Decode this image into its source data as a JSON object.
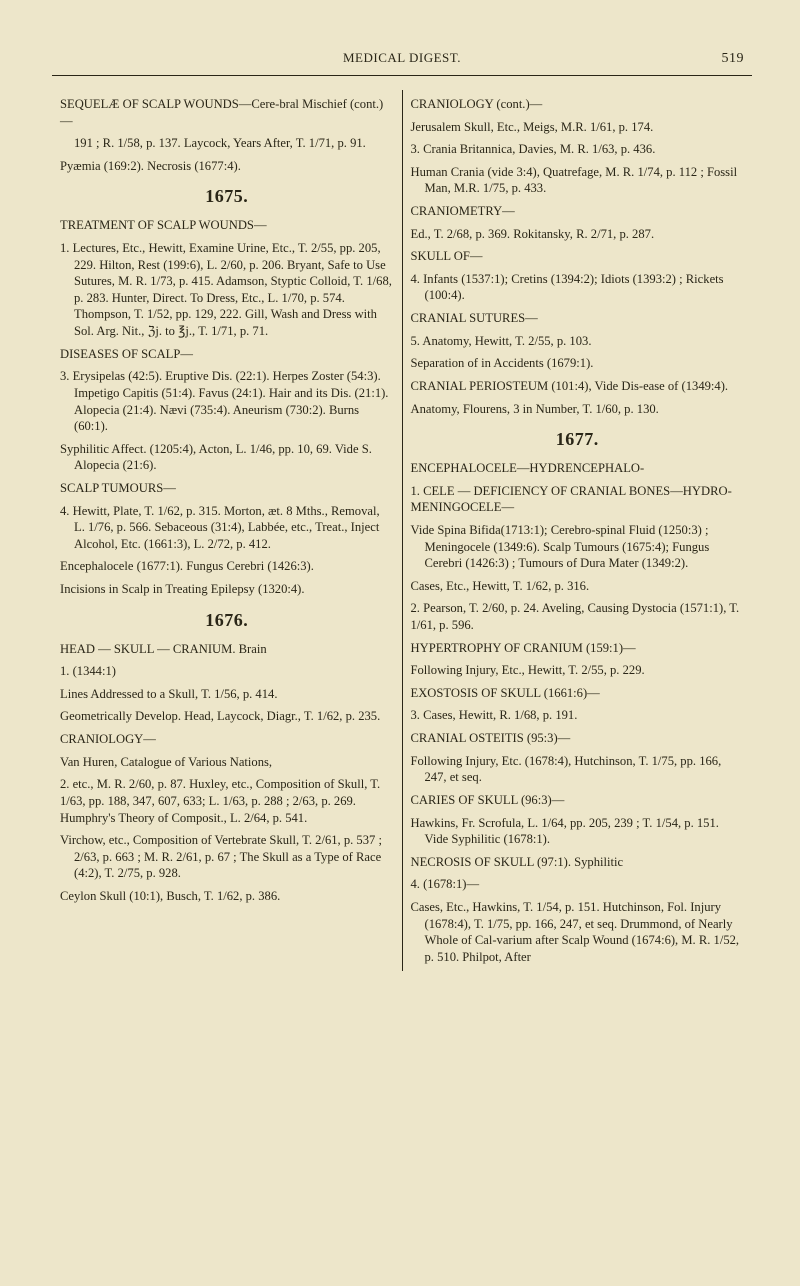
{
  "page": {
    "running_head": "MEDICAL DIGEST.",
    "page_number": "519",
    "background_color": "#ede6ca",
    "text_color": "#2a2617",
    "base_font_size_pt": 9,
    "heading_font_size_pt": 14
  },
  "left": {
    "e1": "SEQUELÆ OF SCALP WOUNDS—Cere-bral Mischief (cont.)—",
    "e1b": "191 ; R. 1/58, p. 137.  Laycock, Years After, T. 1/71, p. 91.",
    "e1c": "Pyæmia (169:2).  Necrosis (1677:4).",
    "year1": "1675.",
    "e2": "TREATMENT OF SCALP WOUNDS—",
    "e3": "1. Lectures, Etc., Hewitt, Examine Urine, Etc., T. 2/55, pp. 205, 229.  Hilton, Rest (199:6), L. 2/60, p. 206.  Bryant, Safe to Use Sutures, M. R. 1/73, p. 415.  Adamson, Styptic Colloid, T. 1/68, p. 283.  Hunter, Direct. To Dress, Etc., L. 1/70, p. 574.  Thompson, T. 1/52, pp. 129, 222.  Gill, Wash and Dress with Sol. Arg. Nit., ℨj. to ℥j., T. 1/71, p. 71.",
    "e4": "DISEASES OF SCALP—",
    "e5": "3. Erysipelas (42:5).  Eruptive Dis. (22:1). Herpes Zoster (54:3).  Impetigo Capitis (51:4).  Favus (24:1).  Hair and its Dis. (21:1).  Alopecia (21:4). Nævi (735:4).  Aneurism (730:2).  Burns (60:1).",
    "e5b": "Syphilitic Affect. (1205:4), Acton, L. 1/46, pp. 10, 69.  Vide S. Alopecia (21:6).",
    "e6": "SCALP TUMOURS—",
    "e7": "4. Hewitt, Plate, T. 1/62, p. 315.  Morton, æt. 8 Mths., Removal, L. 1/76, p. 566. Sebaceous (31:4), Labbée, etc., Treat., Inject Alcohol, Etc. (1661:3), L. 2/72, p. 412.",
    "e7b": "Encephalocele (1677:1). Fungus Cerebri (1426:3).",
    "e7c": "Incisions in Scalp in Treating Epilepsy (1320:4).",
    "year2": "1676.",
    "e8": "HEAD — SKULL — CRANIUM.   Brain",
    "e8b": "1.    (1344:1)",
    "e9": "Lines Addressed to a Skull, T. 1/56, p. 414.",
    "e10": "Geometrically Develop.  Head, Laycock, Diagr., T. 1/62, p. 235.",
    "e11": "CRANIOLOGY—",
    "e12": "Van Huren, Catalogue of Various Nations,",
    "e12b": "2.    etc., M. R. 2/60, p. 87.  Huxley, etc., Composition of Skull, T. 1/63, pp. 188, 347, 607, 633;  L. 1/63, p. 288 ; 2/63, p. 269.  Humphry's Theory of Composit., L. 2/64, p. 541.",
    "e12c": "Virchow, etc., Composition of Vertebrate Skull, T. 2/61, p. 537 ; 2/63, p. 663 ; M. R. 2/61, p. 67 ;  The Skull as a Type of Race (4:2), T. 2/75, p. 928.",
    "e12d": "Ceylon Skull (10:1), Busch, T. 1/62, p. 386."
  },
  "right": {
    "e1": "CRANIOLOGY (cont.)—",
    "e2": "Jerusalem Skull, Etc., Meigs, M.R. 1/61, p. 174.",
    "e3": "3. Crania Britannica, Davies, M. R. 1/63, p. 436.",
    "e4": "Human Crania (vide 3:4), Quatrefage, M. R. 1/74, p. 112 ; Fossil Man, M.R. 1/75, p. 433.",
    "e5": "CRANIOMETRY—",
    "e6": "Ed., T. 2/68, p. 369.  Rokitansky, R. 2/71, p. 287.",
    "e7": "SKULL OF—",
    "e8": "4. Infants (1537:1); Cretins (1394:2); Idiots (1393:2) ; Rickets (100:4).",
    "e9": "CRANIAL SUTURES—",
    "e10": "5. Anatomy, Hewitt, T. 2/55, p. 103.",
    "e10b": "Separation of in Accidents (1679:1).",
    "e11": "CRANIAL PERIOSTEUM (101:4), Vide Dis-ease of (1349:4).",
    "e11b": "Anatomy, Flourens, 3 in Number, T. 1/60, p. 130.",
    "year1": "1677.",
    "e12": "ENCEPHALOCELE—HYDRENCEPHALO-",
    "e12b": "1.  CELE — DEFICIENCY OF CRANIAL BONES—HYDRO-MENINGOCELE—",
    "e13": "Vide Spina Bifida(1713:1); Cerebro-spinal Fluid  (1250:3) ;    Meningocele (1349:6).  Scalp Tumours (1675:4); Fungus Cerebri (1426:3) ; Tumours of Dura Mater (1349:2).",
    "e14": "Cases, Etc., Hewitt, T. 1/62, p. 316.",
    "e14b": "2.    Pearson, T. 2/60, p. 24.  Aveling, Causing Dystocia (1571:1), T. 1/61, p. 596.",
    "e15": "HYPERTROPHY OF CRANIUM (159:1)—",
    "e15b": "Following Injury, Etc., Hewitt, T. 2/55, p. 229.",
    "e16": "EXOSTOSIS OF SKULL (1661:6)—",
    "e16b": "3. Cases, Hewitt, R. 1/68, p. 191.",
    "e17": "CRANIAL OSTEITIS (95:3)—",
    "e17b": "Following Injury, Etc. (1678:4), Hutchinson, T. 1/75, pp. 166, 247, et seq.",
    "e18": "CARIES OF SKULL (96:3)—",
    "e18b": "Hawkins, Fr. Scrofula, L. 1/64, pp. 205, 239 ; T. 1/54, p. 151.  Vide Syphilitic (1678:1).",
    "e19": "NECROSIS OF SKULL (97:1).  Syphilitic",
    "e19b": "4.  (1678:1)—",
    "e20": "Cases, Etc., Hawkins, T. 1/54, p. 151. Hutchinson, Fol. Injury (1678:4), T. 1/75, pp. 166, 247, et seq.  Drummond, of Nearly Whole of Cal-varium after Scalp Wound (1674:6), M. R. 1/52, p. 510.  Philpot, After"
  }
}
